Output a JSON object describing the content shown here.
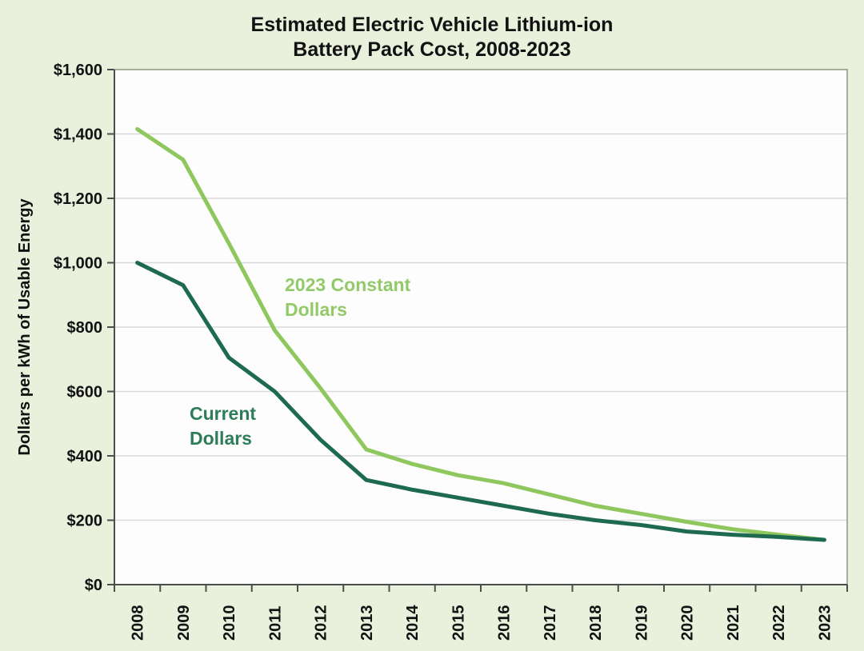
{
  "title": {
    "line1": "Estimated Electric Vehicle Lithium-ion",
    "line2": "Battery Pack Cost, 2008-2023"
  },
  "chart_data": {
    "type": "line",
    "title": "Estimated Electric Vehicle Lithium-ion Battery Pack Cost, 2008-2023",
    "xlabel": "",
    "ylabel": "Dollars per kWh of Usable Energy",
    "ylim": [
      0,
      1600
    ],
    "ytick_step": 200,
    "ytick_labels_top_to_bottom": [
      "$1,600",
      "$1,400",
      "$1,200",
      "$1,000",
      "$800",
      "$600",
      "$400",
      "$200",
      "$0"
    ],
    "categories": [
      "2008",
      "2009",
      "2010",
      "2011",
      "2012",
      "2013",
      "2014",
      "2015",
      "2016",
      "2017",
      "2018",
      "2019",
      "2020",
      "2021",
      "2022",
      "2023"
    ],
    "grid": "horizontal",
    "legend_position": "inline-annotations",
    "series": [
      {
        "name": "2023 Constant Dollars",
        "label_line1": "2023 Constant",
        "label_line2": "Dollars",
        "color": "#8fc75f",
        "label_color": "#92ca69",
        "values": [
          1415,
          1320,
          1060,
          790,
          610,
          420,
          375,
          340,
          315,
          280,
          245,
          220,
          195,
          172,
          155,
          139
        ]
      },
      {
        "name": "Current Dollars",
        "label_line1": "Current",
        "label_line2": "Dollars",
        "color": "#1e6a50",
        "label_color": "#2d7c5a",
        "values": [
          1000,
          930,
          705,
          600,
          450,
          325,
          295,
          270,
          245,
          220,
          200,
          185,
          165,
          155,
          148,
          139
        ]
      }
    ],
    "style": {
      "page_background": "#e9f0dc",
      "plot_background": "#fdfdfd",
      "gridline_color": "#d9d9d9",
      "plot_border_color": "#8e9584",
      "axis_color": "#4d4d4d",
      "tick_label_color": "#121212",
      "line_width": 5
    }
  }
}
